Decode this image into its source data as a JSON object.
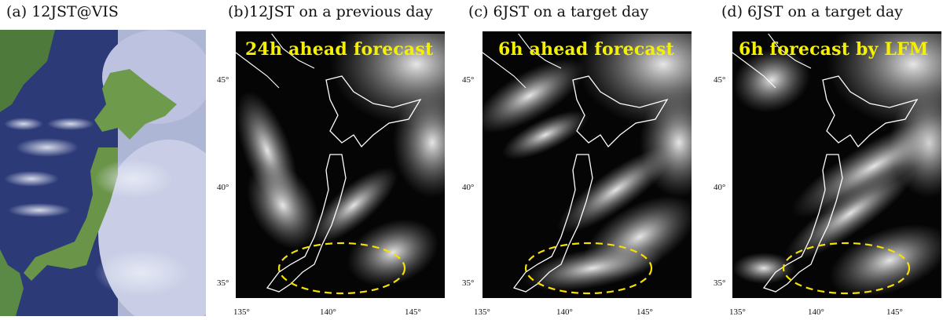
{
  "panels": [
    {
      "title": "(a)  12JST@VIS"
    },
    {
      "title": "(b)12JST on a previous day",
      "overlay": "24h ahead forecast"
    },
    {
      "title": "(c)   6JST on a target day",
      "overlay": "6h ahead forecast"
    },
    {
      "title": "(d)   6JST on a target day",
      "overlay": "6h forecast by LFM"
    }
  ],
  "axes": {
    "y_ticks": [
      "45°",
      "40°",
      "35°"
    ],
    "x_ticks": [
      "135°",
      "140°",
      "145°"
    ]
  },
  "colors": {
    "overlay_text": "#f5f000",
    "highlight_ellipse": "#f5e000",
    "coastline": "#ffffff"
  }
}
